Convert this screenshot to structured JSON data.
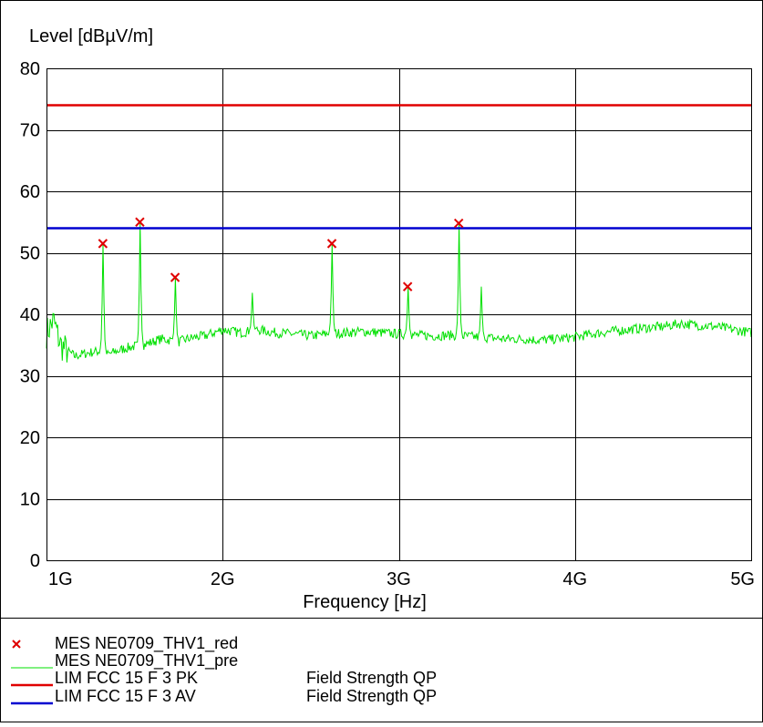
{
  "chart_data": {
    "type": "line",
    "ylabel": "Level [dBµV/m]",
    "xlabel": "Frequency [Hz]",
    "ylim": [
      0,
      80
    ],
    "xlim": [
      1000000000,
      5000000000
    ],
    "x_ticks": [
      {
        "value": 1000000000,
        "label": "1G"
      },
      {
        "value": 2000000000,
        "label": "2G"
      },
      {
        "value": 3000000000,
        "label": "3G"
      },
      {
        "value": 4000000000,
        "label": "4G"
      },
      {
        "value": 5000000000,
        "label": "5G"
      }
    ],
    "y_ticks": [
      0,
      10,
      20,
      30,
      40,
      50,
      60,
      70,
      80
    ],
    "grid": true,
    "limits": [
      {
        "id": "pk",
        "value": 74,
        "color": "#e00000"
      },
      {
        "id": "av",
        "value": 54,
        "color": "#0000d0"
      }
    ],
    "markers": {
      "color": "#e00000",
      "points": [
        {
          "x": 1320000000,
          "y": 51.5
        },
        {
          "x": 1530000000,
          "y": 55.0
        },
        {
          "x": 1730000000,
          "y": 46.0
        },
        {
          "x": 2620000000,
          "y": 51.5
        },
        {
          "x": 3050000000,
          "y": 44.5
        },
        {
          "x": 3340000000,
          "y": 54.8
        }
      ]
    },
    "trace": {
      "color": "#00e000",
      "baseline": [
        [
          1000000000,
          37.0
        ],
        [
          1040000000,
          39.0
        ],
        [
          1080000000,
          35.0
        ],
        [
          1120000000,
          34.0
        ],
        [
          1160000000,
          33.2
        ],
        [
          1200000000,
          33.5
        ],
        [
          1250000000,
          33.8
        ],
        [
          1300000000,
          34.0
        ],
        [
          1350000000,
          33.5
        ],
        [
          1400000000,
          34.0
        ],
        [
          1450000000,
          34.5
        ],
        [
          1500000000,
          34.8
        ],
        [
          1550000000,
          35.0
        ],
        [
          1600000000,
          35.5
        ],
        [
          1650000000,
          36.0
        ],
        [
          1700000000,
          35.8
        ],
        [
          1750000000,
          35.5
        ],
        [
          1800000000,
          36.0
        ],
        [
          1850000000,
          36.3
        ],
        [
          1900000000,
          36.5
        ],
        [
          1950000000,
          37.0
        ],
        [
          2000000000,
          37.5
        ],
        [
          2100000000,
          37.0
        ],
        [
          2200000000,
          37.5
        ],
        [
          2300000000,
          37.0
        ],
        [
          2400000000,
          36.8
        ],
        [
          2500000000,
          36.5
        ],
        [
          2600000000,
          36.8
        ],
        [
          2700000000,
          37.0
        ],
        [
          2800000000,
          37.2
        ],
        [
          2900000000,
          37.0
        ],
        [
          3000000000,
          36.8
        ],
        [
          3100000000,
          36.6
        ],
        [
          3200000000,
          36.5
        ],
        [
          3300000000,
          36.6
        ],
        [
          3400000000,
          36.4
        ],
        [
          3500000000,
          36.2
        ],
        [
          3600000000,
          36.0
        ],
        [
          3700000000,
          36.0
        ],
        [
          3800000000,
          35.8
        ],
        [
          3900000000,
          36.0
        ],
        [
          4000000000,
          36.3
        ],
        [
          4100000000,
          36.8
        ],
        [
          4200000000,
          37.2
        ],
        [
          4300000000,
          37.5
        ],
        [
          4400000000,
          37.8
        ],
        [
          4500000000,
          38.0
        ],
        [
          4600000000,
          38.5
        ],
        [
          4700000000,
          38.2
        ],
        [
          4800000000,
          38.0
        ],
        [
          4900000000,
          37.5
        ],
        [
          5000000000,
          37.0
        ]
      ],
      "spikes": [
        {
          "x": 1320000000,
          "y": 51.5
        },
        {
          "x": 1530000000,
          "y": 55.0
        },
        {
          "x": 1730000000,
          "y": 46.0
        },
        {
          "x": 2170000000,
          "y": 43.5
        },
        {
          "x": 2620000000,
          "y": 51.5
        },
        {
          "x": 3050000000,
          "y": 44.5
        },
        {
          "x": 3340000000,
          "y": 54.8
        },
        {
          "x": 3470000000,
          "y": 44.5
        }
      ]
    },
    "legend": [
      {
        "id": "mes-red",
        "kind": "marker",
        "color": "#e00000",
        "symbol": "x",
        "label": "MES  NE0709_THV1_red",
        "note": ""
      },
      {
        "id": "mes-pre",
        "kind": "line",
        "color": "#00e000",
        "label": "MES  NE0709_THV1_pre",
        "note": ""
      },
      {
        "id": "lim-pk",
        "kind": "line",
        "color": "#e00000",
        "label": "LIM  FCC 15 F 3 PK",
        "note": "Field Strength QP"
      },
      {
        "id": "lim-av",
        "kind": "line",
        "color": "#0000d0",
        "label": "LIM  FCC 15 F 3 AV",
        "note": "Field Strength QP"
      }
    ]
  }
}
